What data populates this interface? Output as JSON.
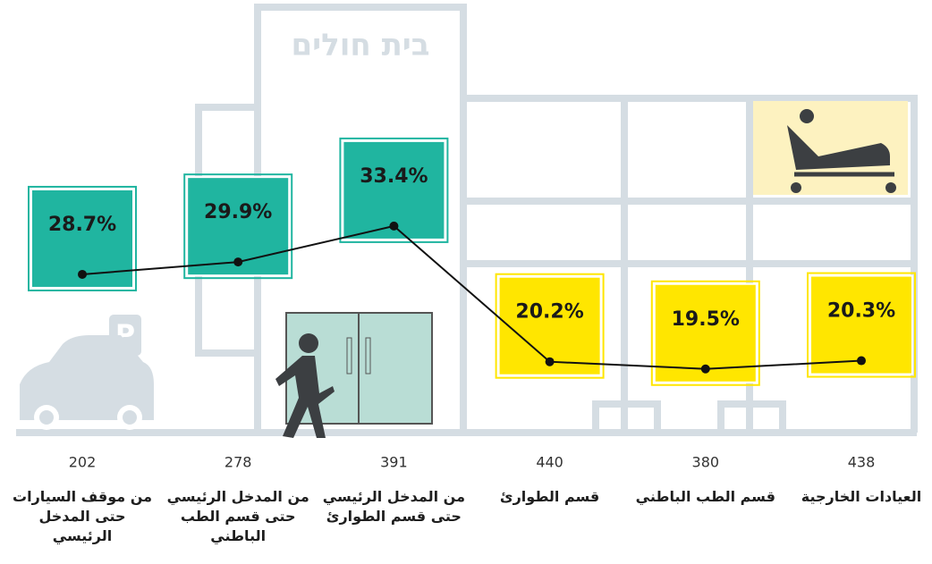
{
  "chart_data": {
    "type": "line",
    "building_label": "בית חולים",
    "parking_sign": "P",
    "categories": [
      "من موقف السيارات حتى المدخل الرئيسي",
      "من المدخل الرئيسي حتى قسم الطب الباطني",
      "من المدخل الرئيسي حتى قسم الطوارئ",
      "قسم الطوارئ",
      "قسم الطب الباطني",
      "العيادات الخارجية"
    ],
    "values": [
      28.7,
      29.9,
      33.4,
      20.2,
      19.5,
      20.3
    ],
    "value_labels": [
      "28.7%",
      "29.9%",
      "33.4%",
      "20.2%",
      "19.5%",
      "20.3%"
    ],
    "counts": [
      202,
      278,
      391,
      440,
      380,
      438
    ],
    "point_colors": [
      "#20b5a0",
      "#20b5a0",
      "#20b5a0",
      "#ffe600",
      "#ffe600",
      "#ffe600"
    ],
    "line_color": "#111111"
  }
}
